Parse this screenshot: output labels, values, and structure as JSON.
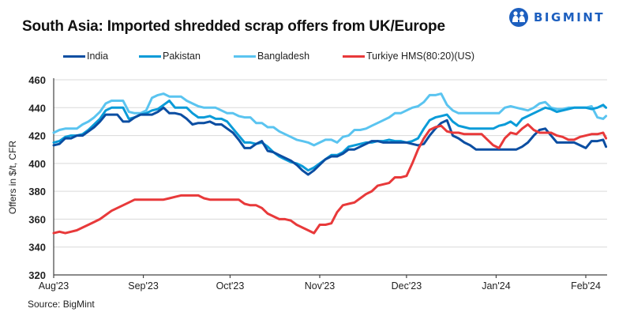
{
  "header": {
    "title": "South Asia: Imported shredded scrap offers from UK/Europe",
    "brand": "BIGMINT"
  },
  "source": "Source: BigMint",
  "chart_data": {
    "type": "line",
    "title": "South Asia: Imported shredded scrap offers from UK/Europe",
    "xlabel": "",
    "ylabel": "Offers in $/t, CFR",
    "ylim": [
      320,
      460
    ],
    "yticks": [
      320,
      340,
      360,
      380,
      400,
      420,
      440,
      460
    ],
    "grid": true,
    "legend_position": "top",
    "x_unit": "days since 1-Aug-2023",
    "xlim": [
      0,
      191
    ],
    "xticks": [
      {
        "day": 0,
        "label": "Aug'23"
      },
      {
        "day": 31,
        "label": "Sep'23"
      },
      {
        "day": 61,
        "label": "Oct'23"
      },
      {
        "day": 92,
        "label": "Nov'23"
      },
      {
        "day": 122,
        "label": "Dec'23"
      },
      {
        "day": 153,
        "label": "Jan'24"
      },
      {
        "day": 184,
        "label": "Feb'24"
      }
    ],
    "series": [
      {
        "name": "India",
        "color": "#0b4ea2",
        "x": [
          0,
          2,
          4,
          6,
          8,
          10,
          12,
          14,
          16,
          18,
          20,
          22,
          24,
          26,
          28,
          30,
          32,
          34,
          36,
          38,
          40,
          42,
          44,
          46,
          48,
          50,
          52,
          54,
          56,
          58,
          60,
          62,
          64,
          66,
          68,
          70,
          72,
          74,
          76,
          78,
          80,
          82,
          84,
          86,
          88,
          90,
          92,
          94,
          96,
          98,
          100,
          102,
          104,
          106,
          108,
          110,
          112,
          114,
          116,
          118,
          120,
          122,
          124,
          126,
          128,
          130,
          132,
          134,
          136,
          138,
          140,
          142,
          144,
          146,
          148,
          150,
          152,
          154,
          156,
          158,
          160,
          162,
          164,
          166,
          168,
          170,
          172,
          174,
          176,
          178,
          180,
          182,
          184,
          186,
          188,
          190,
          191
        ],
        "values": [
          413,
          414,
          418,
          418,
          420,
          420,
          423,
          426,
          430,
          435,
          435,
          435,
          430,
          430,
          433,
          435,
          435,
          435,
          437,
          440,
          436,
          436,
          435,
          432,
          428,
          429,
          429,
          430,
          428,
          428,
          425,
          422,
          417,
          411,
          411,
          414,
          416,
          409,
          408,
          406,
          404,
          402,
          399,
          395,
          392,
          395,
          399,
          403,
          405,
          405,
          407,
          410,
          410,
          412,
          414,
          416,
          416,
          415,
          415,
          415,
          415,
          415,
          414,
          413,
          414,
          420,
          425,
          429,
          431,
          420,
          418,
          415,
          413,
          410,
          410,
          410,
          410,
          410,
          410,
          410,
          410,
          412,
          415,
          420,
          424,
          425,
          420,
          415,
          415,
          415,
          415,
          413,
          411,
          416,
          416,
          417,
          412
        ]
      },
      {
        "name": "Pakistan",
        "color": "#0a9bd8",
        "x": [
          0,
          2,
          4,
          6,
          8,
          10,
          12,
          14,
          16,
          18,
          20,
          22,
          24,
          26,
          28,
          30,
          32,
          34,
          36,
          38,
          40,
          42,
          44,
          46,
          48,
          50,
          52,
          54,
          56,
          58,
          60,
          62,
          64,
          66,
          68,
          70,
          72,
          74,
          76,
          78,
          80,
          82,
          84,
          86,
          88,
          90,
          92,
          94,
          96,
          98,
          100,
          102,
          104,
          106,
          108,
          110,
          112,
          114,
          116,
          118,
          120,
          122,
          124,
          126,
          128,
          130,
          132,
          134,
          136,
          138,
          140,
          142,
          144,
          146,
          148,
          150,
          152,
          154,
          156,
          158,
          160,
          162,
          164,
          166,
          168,
          170,
          172,
          174,
          176,
          178,
          180,
          182,
          184,
          186,
          188,
          190,
          191
        ],
        "values": [
          415,
          416,
          419,
          420,
          420,
          421,
          424,
          428,
          432,
          438,
          440,
          440,
          440,
          432,
          433,
          435,
          436,
          438,
          439,
          442,
          445,
          440,
          440,
          440,
          436,
          433,
          433,
          434,
          432,
          432,
          430,
          425,
          420,
          415,
          415,
          414,
          415,
          412,
          408,
          405,
          403,
          401,
          400,
          398,
          395,
          397,
          400,
          403,
          406,
          406,
          408,
          412,
          413,
          414,
          415,
          415,
          416,
          416,
          417,
          416,
          416,
          415,
          416,
          418,
          425,
          431,
          433,
          434,
          435,
          430,
          427,
          426,
          425,
          425,
          425,
          425,
          425,
          427,
          428,
          430,
          427,
          432,
          434,
          436,
          438,
          440,
          439,
          437,
          438,
          439,
          440,
          440,
          440,
          439,
          440,
          442,
          440
        ]
      },
      {
        "name": "Bangladesh",
        "color": "#5ac4f0",
        "x": [
          0,
          2,
          4,
          6,
          8,
          10,
          12,
          14,
          16,
          18,
          20,
          22,
          24,
          26,
          28,
          30,
          32,
          34,
          36,
          38,
          40,
          42,
          44,
          46,
          48,
          50,
          52,
          54,
          56,
          58,
          60,
          62,
          64,
          66,
          68,
          70,
          72,
          74,
          76,
          78,
          80,
          82,
          84,
          86,
          88,
          90,
          92,
          94,
          96,
          98,
          100,
          102,
          104,
          106,
          108,
          110,
          112,
          114,
          116,
          118,
          120,
          122,
          124,
          126,
          128,
          130,
          132,
          134,
          136,
          138,
          140,
          142,
          144,
          146,
          148,
          150,
          152,
          154,
          156,
          158,
          160,
          162,
          164,
          166,
          168,
          170,
          172,
          174,
          176,
          178,
          180,
          182,
          184,
          186,
          188,
          190,
          191
        ],
        "values": [
          422,
          424,
          425,
          425,
          425,
          428,
          430,
          433,
          437,
          443,
          445,
          445,
          445,
          437,
          436,
          436,
          438,
          447,
          449,
          450,
          448,
          448,
          448,
          445,
          443,
          441,
          440,
          440,
          440,
          438,
          436,
          436,
          434,
          433,
          433,
          429,
          429,
          426,
          426,
          423,
          421,
          419,
          417,
          416,
          415,
          413,
          415,
          417,
          417,
          415,
          419,
          420,
          424,
          424,
          425,
          427,
          429,
          431,
          433,
          436,
          436,
          438,
          440,
          441,
          444,
          449,
          449,
          450,
          442,
          438,
          436,
          436,
          436,
          436,
          436,
          436,
          436,
          436,
          440,
          441,
          440,
          439,
          438,
          440,
          443,
          444,
          440,
          439,
          439,
          440,
          440,
          440,
          440,
          441,
          433,
          432,
          434
        ]
      },
      {
        "name": "Turkiye HMS(80:20)(US)",
        "color": "#e8393a",
        "x": [
          0,
          2,
          4,
          6,
          8,
          10,
          12,
          14,
          16,
          18,
          20,
          22,
          24,
          26,
          28,
          30,
          32,
          34,
          36,
          38,
          40,
          42,
          44,
          46,
          48,
          50,
          52,
          54,
          56,
          58,
          60,
          62,
          64,
          66,
          68,
          70,
          72,
          74,
          76,
          78,
          80,
          82,
          84,
          86,
          88,
          90,
          92,
          94,
          96,
          98,
          100,
          102,
          104,
          106,
          108,
          110,
          112,
          114,
          116,
          118,
          120,
          122,
          124,
          126,
          128,
          130,
          132,
          134,
          136,
          138,
          140,
          142,
          144,
          146,
          148,
          150,
          152,
          154,
          156,
          158,
          160,
          162,
          164,
          166,
          168,
          170,
          172,
          174,
          176,
          178,
          180,
          182,
          184,
          186,
          188,
          190,
          191
        ],
        "values": [
          350,
          351,
          350,
          351,
          352,
          354,
          356,
          358,
          360,
          363,
          366,
          368,
          370,
          372,
          374,
          374,
          374,
          374,
          374,
          374,
          375,
          376,
          377,
          377,
          377,
          377,
          375,
          374,
          374,
          374,
          374,
          374,
          374,
          371,
          370,
          370,
          368,
          364,
          362,
          360,
          360,
          359,
          356,
          354,
          352,
          350,
          356,
          356,
          357,
          365,
          370,
          371,
          372,
          375,
          378,
          380,
          384,
          385,
          386,
          390,
          390,
          391,
          400,
          410,
          418,
          424,
          426,
          427,
          423,
          422,
          422,
          421,
          421,
          421,
          421,
          417,
          413,
          411,
          418,
          422,
          421,
          425,
          428,
          424,
          422,
          422,
          422,
          420,
          419,
          417,
          417,
          419,
          420,
          421,
          421,
          422,
          418
        ]
      }
    ]
  }
}
